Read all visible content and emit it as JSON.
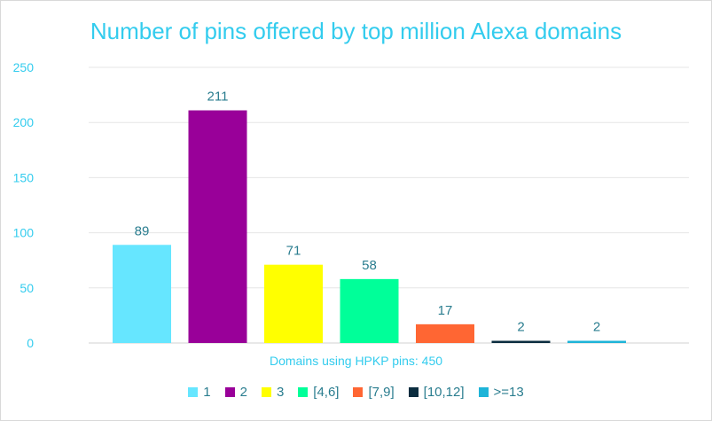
{
  "chart_data": {
    "type": "bar",
    "title": "Number of pins offered by top million Alexa domains",
    "xlabel": "Domains using HPKP pins: 450",
    "ylabel": "",
    "ylim": [
      0,
      250
    ],
    "yticks": [
      0,
      50,
      100,
      150,
      200,
      250
    ],
    "grid": true,
    "legend": "bottom",
    "categories": [
      "1",
      "2",
      "3",
      "[4,6]",
      "[7,9]",
      "[10,12]",
      ">=13"
    ],
    "values": [
      89,
      211,
      71,
      58,
      17,
      2,
      2
    ],
    "colors": [
      "#66e6ff",
      "#990099",
      "#ffff00",
      "#00ff99",
      "#ff6633",
      "#0b2d3f",
      "#1eb4d8"
    ]
  }
}
